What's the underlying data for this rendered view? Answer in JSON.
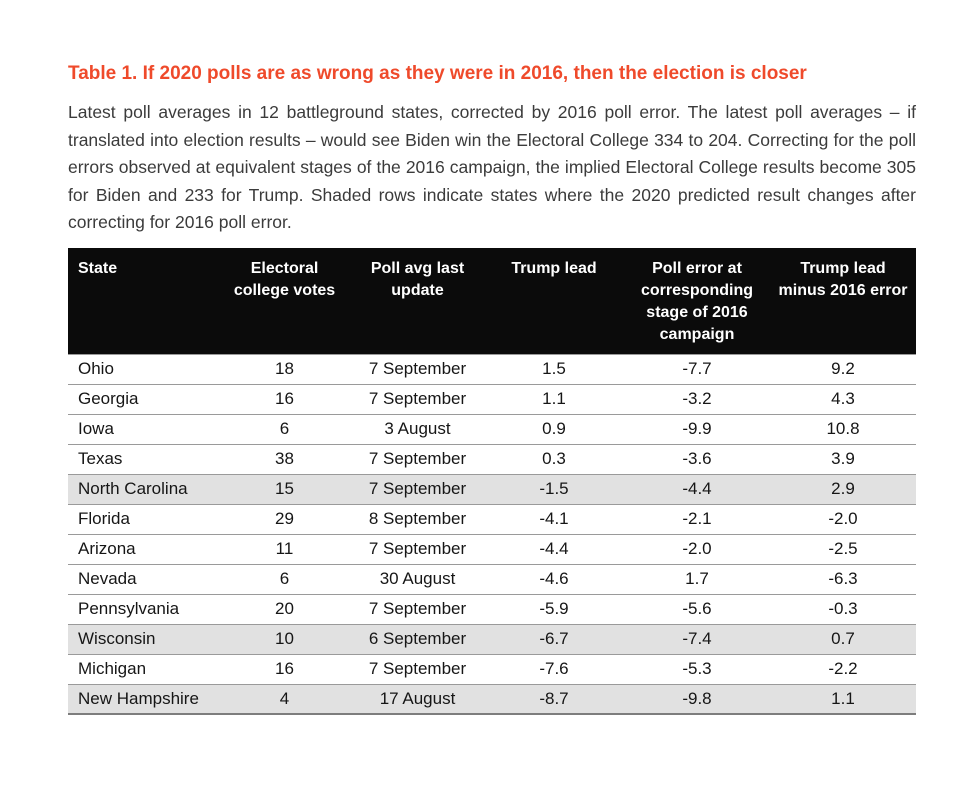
{
  "title": {
    "text": "Table 1. If 2020 polls are as wrong as they were in 2016, then the election is closer"
  },
  "description": "Latest poll averages in 12 battleground states, corrected by 2016 poll error. The latest poll averages – if translated into election results – would see Biden win the Electoral College 334 to 204. Correcting for the poll errors observed at equivalent stages of the 2016 campaign, the implied Electoral College results become 305 for Biden and 233 for Trump. Shaded rows indicate states where the 2020 predicted result changes after correcting for 2016 poll error.",
  "table": {
    "columns": [
      {
        "key": "state",
        "label": "State"
      },
      {
        "key": "electoral_college_votes",
        "label": "Electoral college votes"
      },
      {
        "key": "poll_avg_last_update",
        "label": "Poll avg last update"
      },
      {
        "key": "trump_lead",
        "label": "Trump lead"
      },
      {
        "key": "poll_error_2016_stage",
        "label": "Poll error at corresponding stage of 2016 campaign"
      },
      {
        "key": "trump_lead_minus_2016_error",
        "label": "Trump lead minus 2016 error"
      }
    ],
    "rows": [
      {
        "state": "Ohio",
        "electoral_college_votes": "18",
        "poll_avg_last_update": "7 September",
        "trump_lead": "1.5",
        "poll_error_2016_stage": "-7.7",
        "trump_lead_minus_2016_error": "9.2",
        "shaded": false
      },
      {
        "state": "Georgia",
        "electoral_college_votes": "16",
        "poll_avg_last_update": "7 September",
        "trump_lead": "1.1",
        "poll_error_2016_stage": "-3.2",
        "trump_lead_minus_2016_error": "4.3",
        "shaded": false
      },
      {
        "state": "Iowa",
        "electoral_college_votes": "6",
        "poll_avg_last_update": "3 August",
        "trump_lead": "0.9",
        "poll_error_2016_stage": "-9.9",
        "trump_lead_minus_2016_error": "10.8",
        "shaded": false
      },
      {
        "state": "Texas",
        "electoral_college_votes": "38",
        "poll_avg_last_update": "7 September",
        "trump_lead": "0.3",
        "poll_error_2016_stage": "-3.6",
        "trump_lead_minus_2016_error": "3.9",
        "shaded": false
      },
      {
        "state": "North Carolina",
        "electoral_college_votes": "15",
        "poll_avg_last_update": "7 September",
        "trump_lead": "-1.5",
        "poll_error_2016_stage": "-4.4",
        "trump_lead_minus_2016_error": "2.9",
        "shaded": true
      },
      {
        "state": "Florida",
        "electoral_college_votes": "29",
        "poll_avg_last_update": "8 September",
        "trump_lead": "-4.1",
        "poll_error_2016_stage": "-2.1",
        "trump_lead_minus_2016_error": "-2.0",
        "shaded": false
      },
      {
        "state": "Arizona",
        "electoral_college_votes": "11",
        "poll_avg_last_update": "7 September",
        "trump_lead": "-4.4",
        "poll_error_2016_stage": "-2.0",
        "trump_lead_minus_2016_error": "-2.5",
        "shaded": false
      },
      {
        "state": "Nevada",
        "electoral_college_votes": "6",
        "poll_avg_last_update": "30 August",
        "trump_lead": "-4.6",
        "poll_error_2016_stage": "1.7",
        "trump_lead_minus_2016_error": "-6.3",
        "shaded": false
      },
      {
        "state": "Pennsylvania",
        "electoral_college_votes": "20",
        "poll_avg_last_update": "7 September",
        "trump_lead": "-5.9",
        "poll_error_2016_stage": "-5.6",
        "trump_lead_minus_2016_error": "-0.3",
        "shaded": false
      },
      {
        "state": "Wisconsin",
        "electoral_college_votes": "10",
        "poll_avg_last_update": "6 September",
        "trump_lead": "-6.7",
        "poll_error_2016_stage": "-7.4",
        "trump_lead_minus_2016_error": "0.7",
        "shaded": true
      },
      {
        "state": "Michigan",
        "electoral_college_votes": "16",
        "poll_avg_last_update": "7 September",
        "trump_lead": "-7.6",
        "poll_error_2016_stage": "-5.3",
        "trump_lead_minus_2016_error": "-2.2",
        "shaded": false
      },
      {
        "state": "New Hampshire",
        "electoral_college_votes": "4",
        "poll_avg_last_update": "17 August",
        "trump_lead": "-8.7",
        "poll_error_2016_stage": "-9.8",
        "trump_lead_minus_2016_error": "1.1",
        "shaded": true
      }
    ]
  },
  "colors": {
    "background": "#ffffff",
    "accent": "#ef4a2b",
    "body_text": "#3b3b3b",
    "table_text": "#161616",
    "header_bg": "#0b0b0b",
    "header_text": "#ffffff",
    "row_divider": "#9a9a9a",
    "shaded_row": "#e1e1e1",
    "table_bottom_border": "#7d7d7d"
  }
}
